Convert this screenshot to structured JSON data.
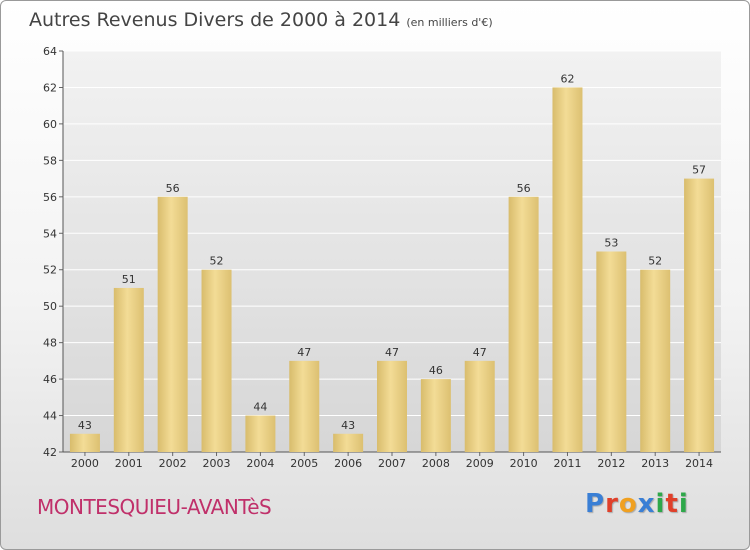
{
  "header": {
    "title": "Autres Revenus Divers de 2000 à 2014",
    "unit": "(en milliers d'€)"
  },
  "footer": {
    "commune": "MONTESQUIEU-AVANTèS",
    "brand": "Proxiti",
    "brand_colors": [
      "#3a7fd5",
      "#e0402a",
      "#f0a020",
      "#3a7fd5",
      "#2ea84a",
      "#e0402a",
      "#2ea84a"
    ]
  },
  "chart_data": {
    "type": "bar",
    "categories": [
      "2000",
      "2001",
      "2002",
      "2003",
      "2004",
      "2005",
      "2006",
      "2007",
      "2008",
      "2009",
      "2010",
      "2011",
      "2012",
      "2013",
      "2014"
    ],
    "values": [
      43,
      51,
      56,
      52,
      44,
      47,
      43,
      47,
      46,
      47,
      56,
      62,
      53,
      52,
      57
    ],
    "ylim": [
      42,
      64
    ],
    "yticks": [
      42,
      44,
      46,
      48,
      50,
      52,
      54,
      56,
      58,
      60,
      62,
      64
    ],
    "grid": true,
    "bar_color": "#e9cf86"
  }
}
